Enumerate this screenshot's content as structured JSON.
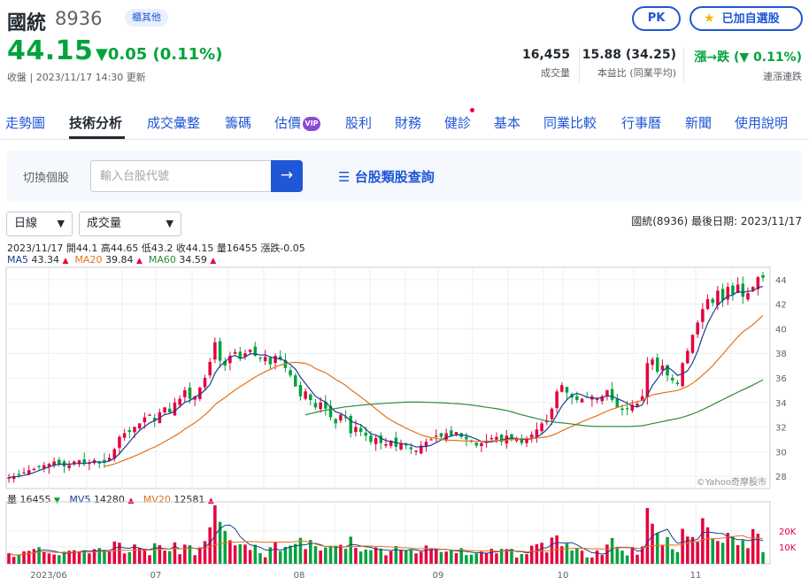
{
  "stock": {
    "name": "國統",
    "code": "8936",
    "market": "櫃其他",
    "price": "44.15",
    "change": "▼0.05 (0.11%)",
    "close_time": "收盤 | 2023/11/17 14:30 更新"
  },
  "actions": {
    "pk_label": "PK",
    "watch_label": "已加自選股"
  },
  "stats": [
    {
      "value": "16,455",
      "label": "成交量"
    },
    {
      "value": "15.88 (34.25)",
      "label": "本益比 (同業平均)"
    },
    {
      "value": "漲→跌 (▼ 0.11%)",
      "label": "連漲連跌"
    }
  ],
  "tabs": [
    "走勢圖",
    "技術分析",
    "成交彙整",
    "籌碼",
    "估價",
    "股利",
    "財務",
    "健診",
    "基本",
    "同業比較",
    "行事曆",
    "新聞",
    "使用說明"
  ],
  "vip_badge": "VIP",
  "search": {
    "switch_label": "切換個股",
    "placeholder": "輸入台股代號",
    "category_link": "台股類股查詢"
  },
  "controls": {
    "period": "日線",
    "indicator": "成交量"
  },
  "chart_meta": "國統(8936)   最後日期: 2023/11/17",
  "ohlc_text": "2023/11/17 開44.1 高44.65 低43.2 收44.15 量16455 漲跌-0.05",
  "ma": {
    "ma5_label": "MA5",
    "ma5_value": "43.34",
    "ma20_label": "MA20",
    "ma20_value": "39.84",
    "ma60_label": "MA60",
    "ma60_value": "34.59"
  },
  "volume_legend": {
    "vol_label": "量",
    "vol_value": "16455",
    "mv5_label": "MV5",
    "mv5_value": "14280",
    "mv20_label": "MV20",
    "mv20_value": "12581"
  },
  "watermark": "©Yahoo奇摩股市",
  "colors": {
    "up": "#e6003e",
    "down": "#00a33c",
    "accent": "#1f57d6",
    "ma5": "#1a3f8f",
    "ma20": "#e3731a",
    "ma60": "#2f8a3a"
  },
  "chart_data": {
    "type": "candlestick",
    "price_axis_ticks": [
      "44",
      "42",
      "40",
      "38",
      "36",
      "34",
      "32",
      "30",
      "28"
    ],
    "price_range": [
      27,
      45
    ],
    "volume_axis_ticks": [
      "20K",
      "10K"
    ],
    "x_tick_labels": [
      "2023/06",
      "07",
      "08",
      "09",
      "10",
      "11"
    ],
    "close_approx": [
      27.9,
      28.0,
      28.1,
      28.3,
      28.5,
      28.6,
      28.8,
      28.9,
      29.0,
      29.2,
      29.0,
      28.8,
      28.9,
      29.2,
      29.3,
      29.0,
      29.1,
      29.3,
      29.1,
      29.2,
      29.5,
      30.2,
      31.2,
      31.5,
      31.6,
      32.0,
      32.3,
      32.8,
      33.0,
      32.5,
      33.2,
      33.6,
      33.2,
      34.0,
      34.3,
      35.0,
      34.3,
      34.5,
      35.2,
      36.0,
      37.3,
      38.9,
      37.4,
      37.0,
      37.8,
      38.1,
      37.6,
      38.0,
      38.3,
      37.8,
      37.6,
      37.7,
      37.1,
      37.8,
      37.5,
      36.8,
      36.2,
      35.3,
      34.5,
      34.9,
      34.2,
      33.6,
      34.0,
      33.5,
      32.8,
      32.3,
      33.0,
      32.8,
      31.5,
      32.0,
      31.6,
      31.3,
      30.8,
      31.1,
      30.7,
      30.6,
      30.9,
      30.4,
      30.7,
      30.5,
      30.2,
      30.1,
      30.5,
      30.8,
      31.0,
      31.3,
      31.2,
      31.5,
      31.3,
      31.6,
      31.2,
      31.0,
      30.8,
      30.5,
      30.7,
      30.9,
      31.1,
      31.2,
      30.8,
      31.3,
      31.1,
      31.0,
      30.7,
      31.0,
      31.4,
      31.8,
      32.3,
      32.5,
      33.5,
      34.9,
      35.4,
      34.8,
      34.4,
      34.2,
      34.3,
      34.4,
      34.5,
      34.3,
      34.5,
      35.0,
      34.2,
      33.6,
      33.4,
      33.5,
      33.8,
      33.9,
      34.5,
      37.2,
      37.5,
      36.5,
      37.0,
      36.2,
      35.8,
      35.5,
      37.2,
      38.2,
      39.5,
      40.5,
      41.6,
      42.4,
      42.1,
      43.1,
      42.3,
      43.4,
      42.8,
      43.6,
      42.6,
      42.9,
      43.4,
      44.2,
      44.15
    ],
    "series": [
      {
        "name": "MA5",
        "last": 43.34
      },
      {
        "name": "MA20",
        "last": 39.84
      },
      {
        "name": "MA60",
        "last": 34.59
      },
      {
        "name": "MV5",
        "last": 14280
      },
      {
        "name": "MV20",
        "last": 12581
      }
    ],
    "last_volume": 16455
  }
}
